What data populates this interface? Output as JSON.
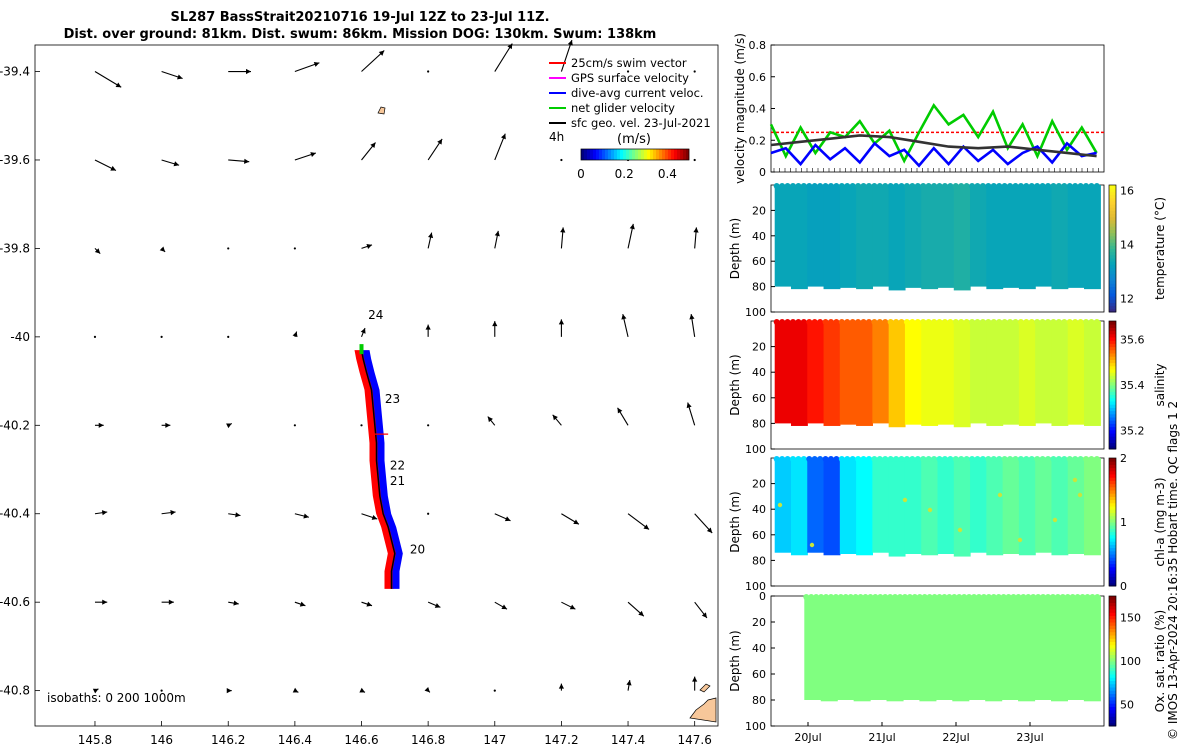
{
  "title": {
    "line1": "SL287 BassStrait20210716 19-Jul 12Z to 23-Jul 11Z.",
    "line2": "Dist. over ground: 81km. Dist. swum: 86km. Mission DOG: 130km. Swum: 138km"
  },
  "copyright": "© IMOS 13-Apr-2024 20:16:35 Hobart time. QC flags 1  2",
  "colors": {
    "swim_vector": "#ff0000",
    "gps_surface": "#ff00ff",
    "dive_avg": "#0000ff",
    "net_glider": "#00cc00",
    "sfc_geo": "#000000",
    "land": "#f7c79a"
  },
  "chart_data": [
    {
      "id": "map",
      "type": "scatter",
      "xlim": [
        145.62,
        147.67
      ],
      "ylim": [
        -40.88,
        -39.34
      ],
      "xticks": [
        "145.8",
        "146",
        "146.2",
        "146.4",
        "146.6",
        "146.8",
        "147",
        "147.2",
        "147.4",
        "147.6"
      ],
      "yticks": [
        "-39.4",
        "-39.6",
        "-39.8",
        "-40",
        "-40.2",
        "-40.4",
        "-40.6",
        "-40.8"
      ],
      "isobaths_label": "isobaths: 0   200  1000m",
      "legend": [
        {
          "label": "25cm/s swim vector",
          "color": "#ff0000"
        },
        {
          "label": "GPS surface velocity",
          "color": "#ff00ff"
        },
        {
          "label": "dive-avg current veloc.",
          "color": "#0000ff"
        },
        {
          "label": "net glider velocity",
          "color": "#00cc00"
        },
        {
          "label": "sfc geo. vel. 23-Jul-2021",
          "color": "#000000"
        }
      ],
      "legend_extra": "4h",
      "colorbar": {
        "label": "(m/s)",
        "ticks": [
          "0",
          "0.2",
          "0.4"
        ],
        "range": [
          0,
          0.5
        ]
      },
      "day_labels": [
        {
          "text": "24",
          "lon": 146.62,
          "lat": -39.96
        },
        {
          "text": "23",
          "lon": 146.67,
          "lat": -40.15
        },
        {
          "text": "22",
          "lon": 146.685,
          "lat": -40.3
        },
        {
          "text": "21",
          "lon": 146.685,
          "lat": -40.335
        },
        {
          "text": "20",
          "lon": 146.745,
          "lat": -40.49
        }
      ],
      "track": [
        [
          146.69,
          -40.57
        ],
        [
          146.69,
          -40.53
        ],
        [
          146.7,
          -40.49
        ],
        [
          146.69,
          -40.46
        ],
        [
          146.68,
          -40.43
        ],
        [
          146.665,
          -40.4
        ],
        [
          146.655,
          -40.36
        ],
        [
          146.65,
          -40.32
        ],
        [
          146.645,
          -40.28
        ],
        [
          146.645,
          -40.24
        ],
        [
          146.64,
          -40.2
        ],
        [
          146.635,
          -40.16
        ],
        [
          146.63,
          -40.12
        ],
        [
          146.615,
          -40.08
        ],
        [
          146.605,
          -40.05
        ],
        [
          146.6,
          -40.03
        ]
      ],
      "vector_field": {
        "lons": [
          145.8,
          146.0,
          146.2,
          146.4,
          146.6,
          146.8,
          147.0,
          147.2,
          147.4,
          147.6
        ],
        "lats": [
          -39.4,
          -39.6,
          -39.8,
          -40.0,
          -40.2,
          -40.4,
          -40.6,
          -40.8
        ],
        "vectors_ms": [
          [
            [
              0.15,
              -0.09
            ],
            [
              0.12,
              -0.04
            ],
            [
              0.13,
              0.0
            ],
            [
              0.14,
              0.05
            ],
            [
              0.13,
              0.12
            ],
            [
              0.0,
              0.0
            ],
            [
              0.1,
              0.16
            ],
            [
              0.06,
              0.18
            ],
            [
              0.0,
              0.0
            ],
            [
              0.0,
              0.0
            ]
          ],
          [
            [
              0.12,
              -0.06
            ],
            [
              0.1,
              -0.03
            ],
            [
              0.12,
              -0.01
            ],
            [
              0.12,
              0.04
            ],
            [
              0.08,
              0.1
            ],
            [
              0.08,
              0.12
            ],
            [
              0.06,
              0.15
            ],
            [
              0.0,
              0.0
            ],
            [
              0.0,
              0.0
            ],
            [
              0.0,
              0.0
            ]
          ],
          [
            [
              0.03,
              -0.03
            ],
            [
              0.02,
              -0.02
            ],
            [
              0.0,
              0.0
            ],
            [
              0.0,
              0.0
            ],
            [
              0.06,
              0.02
            ],
            [
              0.02,
              0.09
            ],
            [
              0.02,
              0.1
            ],
            [
              0.01,
              0.12
            ],
            [
              0.03,
              0.14
            ],
            [
              0.01,
              0.12
            ]
          ],
          [
            [
              0.0,
              0.0
            ],
            [
              0.0,
              0.0
            ],
            [
              0.0,
              0.0
            ],
            [
              0.01,
              0.03
            ],
            [
              0.02,
              0.05
            ],
            [
              0.0,
              0.07
            ],
            [
              0.0,
              0.09
            ],
            [
              0.0,
              0.1
            ],
            [
              -0.03,
              0.13
            ],
            [
              -0.02,
              0.13
            ]
          ],
          [
            [
              0.05,
              0.0
            ],
            [
              0.05,
              0.0
            ],
            [
              0.02,
              0.01
            ],
            [
              0.0,
              0.0
            ],
            [
              0.0,
              0.0
            ],
            [
              0.0,
              0.0
            ],
            [
              -0.04,
              0.05
            ],
            [
              -0.05,
              0.06
            ],
            [
              -0.06,
              0.1
            ],
            [
              -0.04,
              0.13
            ]
          ],
          [
            [
              0.07,
              0.01
            ],
            [
              0.08,
              0.01
            ],
            [
              0.07,
              -0.01
            ],
            [
              0.08,
              -0.02
            ],
            [
              0.09,
              -0.03
            ],
            [
              0.0,
              0.0
            ],
            [
              0.09,
              -0.04
            ],
            [
              0.1,
              -0.06
            ],
            [
              0.12,
              -0.09
            ],
            [
              0.1,
              -0.11
            ]
          ],
          [
            [
              0.07,
              0.0
            ],
            [
              0.07,
              0.0
            ],
            [
              0.06,
              -0.01
            ],
            [
              0.06,
              -0.02
            ],
            [
              0.06,
              -0.02
            ],
            [
              0.07,
              -0.03
            ],
            [
              0.07,
              -0.04
            ],
            [
              0.08,
              -0.04
            ],
            [
              0.09,
              -0.08
            ],
            [
              0.07,
              -0.09
            ]
          ],
          [
            [
              0.02,
              0.01
            ],
            [
              0.0,
              0.0
            ],
            [
              0.02,
              0.0
            ],
            [
              0.02,
              -0.01
            ],
            [
              0.02,
              -0.01
            ],
            [
              0.01,
              -0.01
            ],
            [
              0.0,
              0.0
            ],
            [
              0.0,
              0.04
            ],
            [
              0.01,
              0.06
            ],
            [
              0.0,
              0.08
            ]
          ]
        ]
      }
    },
    {
      "id": "velocity",
      "type": "line",
      "ylabel": "velocity magnitude (m/s)",
      "xlim": [
        19.5,
        24.0
      ],
      "ylim": [
        0,
        0.8
      ],
      "yticks": [
        "0",
        "0.2",
        "0.4",
        "0.6",
        "0.8"
      ],
      "series": [
        {
          "color": "#ff0000",
          "x": [
            19.5,
            24.0
          ],
          "y": [
            0.25,
            0.25
          ]
        },
        {
          "color": "#00cc00",
          "x": [
            19.5,
            19.7,
            19.9,
            20.1,
            20.3,
            20.5,
            20.7,
            20.9,
            21.1,
            21.3,
            21.5,
            21.7,
            21.9,
            22.1,
            22.3,
            22.5,
            22.7,
            22.9,
            23.1,
            23.3,
            23.5,
            23.7,
            23.9
          ],
          "y": [
            0.3,
            0.1,
            0.28,
            0.12,
            0.25,
            0.22,
            0.32,
            0.18,
            0.26,
            0.07,
            0.25,
            0.42,
            0.3,
            0.36,
            0.22,
            0.38,
            0.15,
            0.3,
            0.1,
            0.32,
            0.14,
            0.28,
            0.12
          ]
        },
        {
          "color": "#0000ff",
          "x": [
            19.5,
            19.7,
            19.9,
            20.1,
            20.3,
            20.5,
            20.7,
            20.9,
            21.1,
            21.3,
            21.5,
            21.7,
            21.9,
            22.1,
            22.3,
            22.5,
            22.7,
            22.9,
            23.1,
            23.3,
            23.5,
            23.7,
            23.9
          ],
          "y": [
            0.12,
            0.15,
            0.05,
            0.17,
            0.08,
            0.15,
            0.06,
            0.18,
            0.1,
            0.14,
            0.04,
            0.15,
            0.05,
            0.16,
            0.07,
            0.14,
            0.05,
            0.12,
            0.16,
            0.06,
            0.18,
            0.1,
            0.12
          ]
        },
        {
          "color": "#333333",
          "x": [
            19.5,
            19.9,
            20.3,
            20.7,
            21.1,
            21.5,
            21.9,
            22.3,
            22.7,
            23.1,
            23.5,
            23.9
          ],
          "y": [
            0.17,
            0.19,
            0.21,
            0.23,
            0.22,
            0.19,
            0.16,
            0.15,
            0.16,
            0.14,
            0.12,
            0.1
          ]
        }
      ]
    },
    {
      "id": "temperature",
      "type": "heatmap",
      "ylabel": "Depth (m)",
      "cbar_label": "temperature (°C)",
      "yticks": [
        "20",
        "40",
        "60",
        "80",
        "100"
      ],
      "ylim": [
        0,
        100
      ],
      "clim": [
        11.5,
        16.2
      ],
      "cbar_ticks": [
        "12",
        "14",
        "16"
      ],
      "columns": [
        13.3,
        13.3,
        13.2,
        13.2,
        13.3,
        13.4,
        13.4,
        13.3,
        13.4,
        13.5,
        13.5,
        13.6,
        13.4,
        13.3,
        13.3,
        13.3,
        13.3,
        13.4,
        13.3,
        13.3
      ],
      "x_start": 19.55,
      "x_end": 23.95,
      "bottom_depth": [
        80,
        82,
        80,
        82,
        81,
        82,
        80,
        83,
        81,
        82,
        81,
        83,
        80,
        82,
        81,
        82,
        80,
        82,
        81,
        82
      ]
    },
    {
      "id": "salinity",
      "type": "heatmap",
      "ylabel": "Depth (m)",
      "cbar_label": "salinity",
      "yticks": [
        "20",
        "40",
        "60",
        "80",
        "100"
      ],
      "ylim": [
        0,
        100
      ],
      "clim": [
        35.12,
        35.68
      ],
      "cbar_ticks": [
        "35.2",
        "35.4",
        "35.6"
      ],
      "columns": [
        35.62,
        35.62,
        35.6,
        35.58,
        35.56,
        35.56,
        35.54,
        35.5,
        35.47,
        35.46,
        35.46,
        35.45,
        35.44,
        35.44,
        35.44,
        35.45,
        35.44,
        35.44,
        35.45,
        35.44
      ],
      "x_start": 19.55,
      "x_end": 23.95,
      "bottom_depth": [
        80,
        82,
        80,
        82,
        81,
        82,
        80,
        83,
        81,
        82,
        81,
        83,
        80,
        82,
        81,
        82,
        80,
        82,
        81,
        82
      ]
    },
    {
      "id": "chla",
      "type": "heatmap",
      "ylabel": "Depth (m)",
      "cbar_label": "chl-a (mg m-3)",
      "yticks": [
        "20",
        "40",
        "60",
        "80",
        "100"
      ],
      "ylim": [
        0,
        100
      ],
      "clim": [
        0,
        2
      ],
      "cbar_ticks": [
        "0",
        "1",
        "2"
      ],
      "columns": [
        0.65,
        0.7,
        0.45,
        0.4,
        0.7,
        0.75,
        0.85,
        0.85,
        0.85,
        0.9,
        0.85,
        0.9,
        0.85,
        0.9,
        0.95,
        0.9,
        0.95,
        0.9,
        0.95,
        1.0
      ],
      "x_start": 19.55,
      "x_end": 23.95,
      "bottom_depth": [
        74,
        76,
        74,
        76,
        75,
        76,
        74,
        77,
        75,
        76,
        75,
        77,
        74,
        76,
        75,
        76,
        74,
        76,
        75,
        76
      ]
    },
    {
      "id": "oxsat",
      "type": "heatmap",
      "ylabel": "Depth (m)",
      "cbar_label": "Ox. sat. ratio (%)",
      "yticks": [
        "0",
        "20",
        "40",
        "60",
        "80",
        "100"
      ],
      "ylim": [
        0,
        100
      ],
      "clim": [
        25,
        175
      ],
      "cbar_ticks": [
        "50",
        "100",
        "150"
      ],
      "columns": [
        100,
        100,
        100,
        100,
        100,
        100,
        100,
        100,
        100,
        100,
        100,
        100,
        100,
        100,
        100,
        100,
        100,
        100
      ],
      "x_start": 19.95,
      "x_end": 23.95,
      "bottom_depth": [
        80,
        81,
        80,
        81,
        80,
        81,
        80,
        81,
        80,
        81,
        80,
        81,
        80,
        81,
        80,
        81,
        80,
        81
      ],
      "xticks": [
        "20Jul",
        "21Jul",
        "22Jul",
        "23Jul"
      ]
    }
  ]
}
